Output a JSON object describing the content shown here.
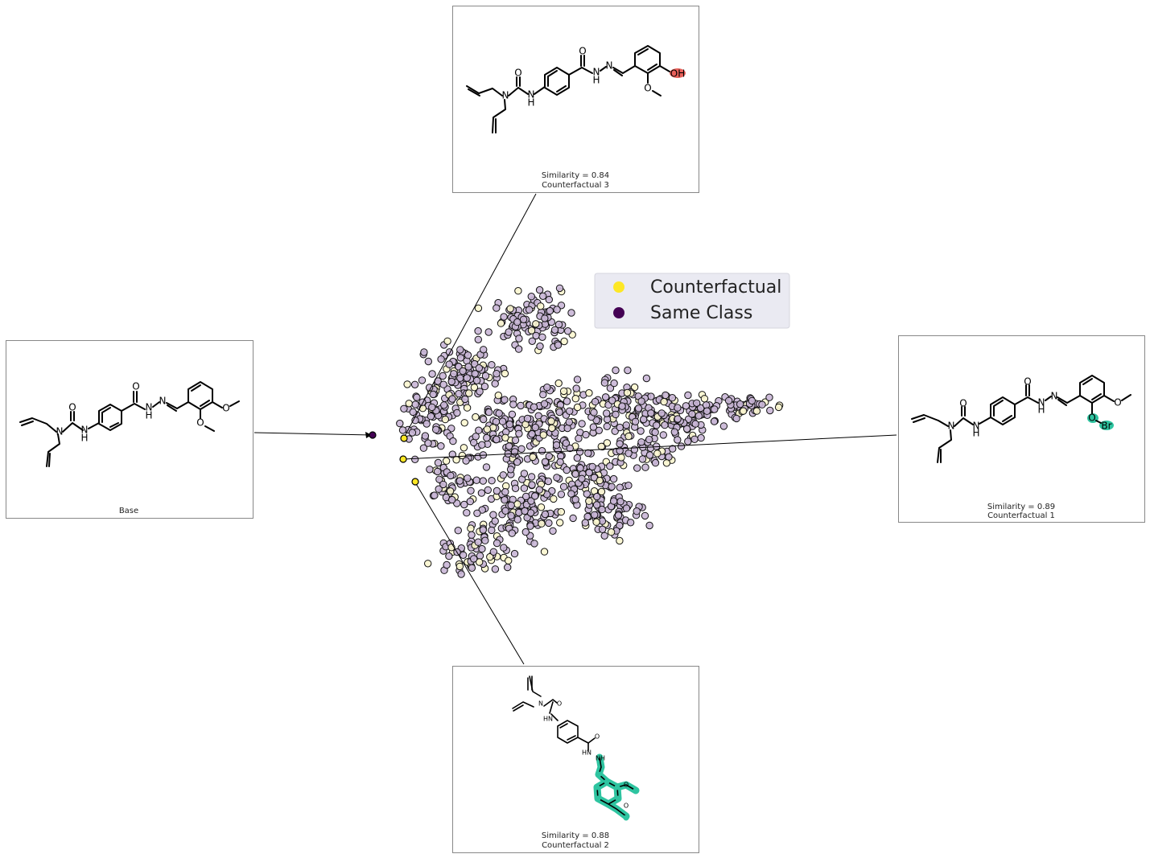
{
  "panels": {
    "base": {
      "caption": "Base"
    },
    "cf1": {
      "similarity": "Similarity = 0.89",
      "caption": "Counterfactual 1"
    },
    "cf2": {
      "similarity": "Similarity = 0.88",
      "caption": "Counterfactual 2"
    },
    "cf3": {
      "similarity": "Similarity = 0.84",
      "caption": "Counterfactual 3"
    }
  },
  "atoms": {
    "O": "O",
    "N": "N",
    "H": "H",
    "NH": "NH",
    "HN": "HN",
    "OH": "OH",
    "Br": "Br"
  },
  "colors": {
    "counterfactual": "#fde725",
    "same_class": "#440154",
    "highlight_red": "#e8605a",
    "highlight_teal": "#2ec4a0",
    "legend_bg": "#eaeaf2",
    "cloud_purple": "#c9b6d6",
    "cloud_yellow": "#fbf6cf"
  },
  "chart_data": {
    "type": "scatter",
    "legend": {
      "placement": "top-right",
      "entries": [
        {
          "label": "Counterfactual",
          "color": "#fde725"
        },
        {
          "label": "Same Class",
          "color": "#440154"
        }
      ]
    },
    "grid": false,
    "axes_visible": false,
    "highlighted_points": [
      {
        "name": "Base",
        "class": "Same Class"
      },
      {
        "name": "Counterfactual 1",
        "class": "Counterfactual"
      },
      {
        "name": "Counterfactual 2",
        "class": "Counterfactual"
      },
      {
        "name": "Counterfactual 3",
        "class": "Counterfactual"
      }
    ],
    "background_points": "t-SNE embedding of ~900 molecules, mostly Same Class (purple) with scattered Counterfactual (yellow)"
  }
}
